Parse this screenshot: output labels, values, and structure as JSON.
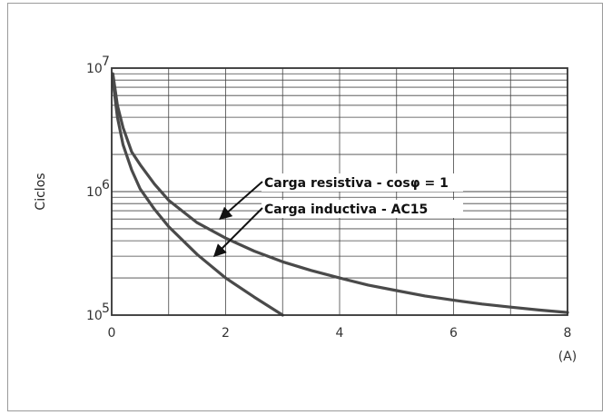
{
  "chart_data": {
    "type": "line",
    "title": "",
    "xlabel": "",
    "x_unit": "(A)",
    "ylabel": "Ciclos",
    "xlim": [
      0,
      8
    ],
    "ylim": [
      100000,
      10000000
    ],
    "y_scale": "log",
    "x_ticks": [
      "0",
      "2",
      "4",
      "6",
      "8"
    ],
    "y_ticks": [
      {
        "base": "10",
        "exp": "7"
      },
      {
        "base": "10",
        "exp": "6"
      },
      {
        "base": "10",
        "exp": "5"
      }
    ],
    "grid": true,
    "series": [
      {
        "name": "Carga resistiva - cosφ = 1",
        "x": [
          0.02,
          0.1,
          0.2,
          0.35,
          0.5,
          0.75,
          1.0,
          1.5,
          2.0,
          2.5,
          3.0,
          3.5,
          4.0,
          4.5,
          5.0,
          5.5,
          6.0,
          6.5,
          7.0,
          7.5,
          8.0
        ],
        "y": [
          9000000,
          5000000,
          3300000,
          2100000,
          1650000,
          1150000,
          850000,
          560000,
          420000,
          330000,
          270000,
          230000,
          200000,
          175000,
          158000,
          143000,
          132000,
          123000,
          116000,
          110000,
          105000
        ]
      },
      {
        "name": "Carga inductiva - AC15",
        "x": [
          0.02,
          0.1,
          0.2,
          0.35,
          0.5,
          0.75,
          1.0,
          1.5,
          2.0,
          2.5,
          3.0
        ],
        "y": [
          8000000,
          4000000,
          2400000,
          1500000,
          1050000,
          720000,
          520000,
          310000,
          200000,
          140000,
          100000
        ]
      }
    ],
    "annotations": [
      {
        "text": "Carga resistiva - cosφ = 1",
        "arrow_to": [
          1.9,
          600000
        ]
      },
      {
        "text": "Carga inductiva - AC15",
        "arrow_to": [
          1.8,
          300000
        ]
      }
    ]
  }
}
